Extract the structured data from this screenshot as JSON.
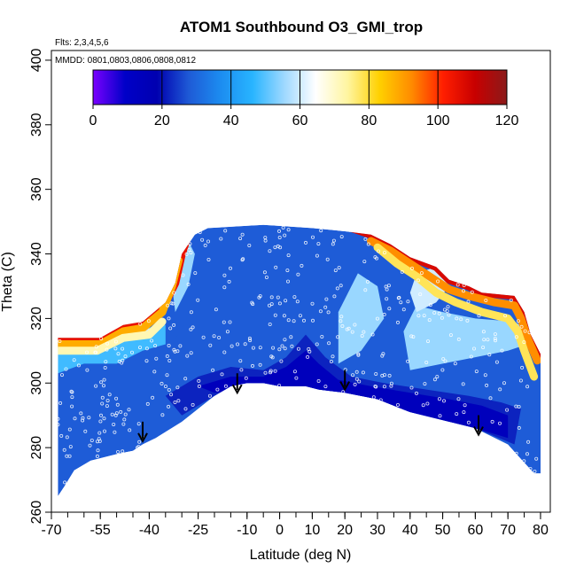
{
  "chart_data": {
    "type": "heatmap",
    "title": "ATOM1 Southbound O3_GMI_trop",
    "flights_note": "Flts: 2,3,4,5,6",
    "dates_note": "MMDD: 0801,0803,0806,0808,0812",
    "xlabel": "Latitude (deg N)",
    "ylabel": "Theta (C)",
    "xlim": [
      -70,
      83
    ],
    "ylim": [
      260,
      403
    ],
    "x_ticks": [
      -70,
      -55,
      -40,
      -25,
      -10,
      0,
      10,
      20,
      30,
      40,
      50,
      60,
      70,
      80
    ],
    "y_ticks": [
      260,
      280,
      300,
      320,
      340,
      360,
      380,
      400
    ],
    "colorbar": {
      "min": 0,
      "max": 120,
      "ticks": [
        0,
        20,
        40,
        60,
        80,
        100,
        120
      ],
      "colors": [
        "#7a00ff",
        "#0000c8",
        "#0000b0",
        "#1e5ad6",
        "#1c8cf0",
        "#28b4ff",
        "#9ed8ff",
        "#ffffff",
        "#fff5a0",
        "#ffd000",
        "#ff8c00",
        "#ff1e00",
        "#c80000",
        "#8b1a1a"
      ]
    },
    "curtain_boundary": {
      "top": [
        [
          -68,
          314
        ],
        [
          -55,
          314
        ],
        [
          -48,
          318
        ],
        [
          -42,
          319
        ],
        [
          -35,
          325
        ],
        [
          -32,
          331
        ],
        [
          -30,
          340
        ],
        [
          -26,
          346
        ],
        [
          -22,
          348
        ],
        [
          -5,
          349
        ],
        [
          10,
          348
        ],
        [
          20,
          347
        ],
        [
          28,
          346
        ],
        [
          34,
          343
        ],
        [
          40,
          339
        ],
        [
          48,
          336
        ],
        [
          52,
          332
        ],
        [
          58,
          330
        ],
        [
          62,
          328
        ],
        [
          72,
          327
        ],
        [
          75,
          322
        ],
        [
          77,
          315
        ],
        [
          80,
          309
        ],
        [
          80,
          294
        ]
      ],
      "bottom": [
        [
          80,
          272
        ],
        [
          78,
          272
        ],
        [
          70,
          281
        ],
        [
          60,
          286
        ],
        [
          52,
          288
        ],
        [
          40,
          291
        ],
        [
          30,
          295
        ],
        [
          20,
          297
        ],
        [
          12,
          298
        ],
        [
          8,
          299
        ],
        [
          0,
          299
        ],
        [
          -5,
          300
        ],
        [
          -10,
          300
        ],
        [
          -15,
          299
        ],
        [
          -20,
          296
        ],
        [
          -25,
          292
        ],
        [
          -30,
          288
        ],
        [
          -38,
          283
        ],
        [
          -42,
          281
        ],
        [
          -45,
          279
        ],
        [
          -50,
          278
        ],
        [
          -58,
          276
        ],
        [
          -63,
          273
        ],
        [
          -66,
          268
        ],
        [
          -68,
          265
        ]
      ]
    },
    "field_layers": [
      {
        "value": 28,
        "polygon": [
          [
            -68,
            265
          ],
          [
            -68,
            302
          ],
          [
            -55,
            304
          ],
          [
            -45,
            307
          ],
          [
            -35,
            309
          ],
          [
            -28,
            320
          ],
          [
            -24,
            330
          ],
          [
            -20,
            345
          ],
          [
            0,
            348
          ],
          [
            20,
            345
          ],
          [
            35,
            340
          ],
          [
            45,
            324
          ],
          [
            55,
            318
          ],
          [
            75,
            314
          ],
          [
            80,
            294
          ],
          [
            80,
            272
          ],
          [
            60,
            286
          ],
          [
            40,
            291
          ],
          [
            20,
            297
          ],
          [
            0,
            299
          ],
          [
            -20,
            296
          ],
          [
            -38,
            283
          ],
          [
            -50,
            278
          ],
          [
            -63,
            273
          ]
        ]
      },
      {
        "value": 22,
        "polygon": [
          [
            -35,
            296
          ],
          [
            -25,
            302
          ],
          [
            -15,
            305
          ],
          [
            -5,
            304
          ],
          [
            2,
            308
          ],
          [
            8,
            315
          ],
          [
            14,
            308
          ],
          [
            22,
            302
          ],
          [
            32,
            300
          ],
          [
            45,
            298
          ],
          [
            58,
            296
          ],
          [
            68,
            294
          ],
          [
            74,
            292
          ],
          [
            72,
            281
          ],
          [
            60,
            286
          ],
          [
            40,
            291
          ],
          [
            20,
            297
          ],
          [
            0,
            299
          ],
          [
            -20,
            296
          ],
          [
            -30,
            290
          ]
        ]
      },
      {
        "value": 14,
        "polygon": [
          [
            -25,
            299
          ],
          [
            -15,
            302
          ],
          [
            -5,
            302
          ],
          [
            2,
            305
          ],
          [
            8,
            310
          ],
          [
            12,
            306
          ],
          [
            18,
            301
          ],
          [
            28,
            299
          ],
          [
            40,
            297
          ],
          [
            52,
            295
          ],
          [
            62,
            293
          ],
          [
            70,
            290
          ],
          [
            70,
            283
          ],
          [
            60,
            286
          ],
          [
            40,
            291
          ],
          [
            20,
            297
          ],
          [
            0,
            299
          ],
          [
            -20,
            297
          ]
        ]
      },
      {
        "value": 48,
        "polygon": [
          [
            -68,
            303
          ],
          [
            -60,
            306
          ],
          [
            -50,
            306
          ],
          [
            -42,
            310
          ],
          [
            -35,
            312
          ],
          [
            -35,
            318
          ],
          [
            -48,
            316
          ],
          [
            -58,
            313
          ],
          [
            -68,
            312
          ]
        ]
      },
      {
        "value": 60,
        "polygon": [
          [
            -68,
            309
          ],
          [
            -58,
            311
          ],
          [
            -48,
            313
          ],
          [
            -40,
            316
          ],
          [
            -40,
            319
          ],
          [
            -50,
            318
          ],
          [
            -60,
            314
          ],
          [
            -68,
            313
          ]
        ]
      },
      {
        "value": 55,
        "polygon": [
          [
            40,
            304
          ],
          [
            50,
            306
          ],
          [
            60,
            308
          ],
          [
            70,
            310
          ],
          [
            76,
            312
          ],
          [
            77,
            316
          ],
          [
            72,
            319
          ],
          [
            60,
            320
          ],
          [
            50,
            322
          ],
          [
            42,
            324
          ],
          [
            38,
            316
          ]
        ]
      },
      {
        "value": 55,
        "polygon": [
          [
            18,
            306
          ],
          [
            25,
            310
          ],
          [
            32,
            320
          ],
          [
            30,
            330
          ],
          [
            24,
            334
          ],
          [
            18,
            322
          ]
        ]
      },
      {
        "value": 60,
        "polygon": [
          [
            42,
            322
          ],
          [
            48,
            325
          ],
          [
            52,
            330
          ],
          [
            48,
            336
          ],
          [
            42,
            334
          ],
          [
            40,
            328
          ]
        ]
      },
      {
        "value": 55,
        "polygon": [
          [
            -32,
            322
          ],
          [
            -28,
            330
          ],
          [
            -26,
            340
          ],
          [
            -28,
            344
          ],
          [
            -31,
            338
          ],
          [
            -33,
            330
          ]
        ]
      }
    ],
    "high_band_segments": [
      {
        "value": 105,
        "polyline": [
          [
            -68,
            314
          ],
          [
            -55,
            314
          ],
          [
            -48,
            318
          ],
          [
            -42,
            319
          ],
          [
            -35,
            325
          ],
          [
            -32,
            331
          ],
          [
            -30,
            340
          ],
          [
            -28,
            346
          ]
        ]
      },
      {
        "value": 88,
        "polyline": [
          [
            -68,
            312
          ],
          [
            -55,
            312
          ],
          [
            -48,
            316
          ],
          [
            -42,
            317
          ],
          [
            -36,
            322
          ],
          [
            -33,
            330
          ],
          [
            -31,
            338
          ]
        ]
      },
      {
        "value": 72,
        "polyline": [
          [
            -68,
            310
          ],
          [
            -56,
            310
          ],
          [
            -48,
            314
          ],
          [
            -40,
            315
          ],
          [
            -36,
            319
          ]
        ]
      },
      {
        "value": 108,
        "polyline": [
          [
            22,
            348
          ],
          [
            28,
            346
          ],
          [
            34,
            343
          ],
          [
            40,
            339
          ],
          [
            48,
            336
          ],
          [
            52,
            332
          ],
          [
            58,
            330
          ],
          [
            62,
            328
          ],
          [
            72,
            327
          ],
          [
            75,
            322
          ],
          [
            77,
            315
          ],
          [
            80,
            309
          ]
        ]
      },
      {
        "value": 92,
        "polyline": [
          [
            28,
            344
          ],
          [
            34,
            341
          ],
          [
            40,
            337
          ],
          [
            46,
            333
          ],
          [
            52,
            329
          ],
          [
            58,
            327
          ],
          [
            66,
            325
          ],
          [
            72,
            324
          ],
          [
            74,
            320
          ],
          [
            76,
            314
          ],
          [
            79,
            307
          ]
        ]
      },
      {
        "value": 78,
        "polyline": [
          [
            30,
            342
          ],
          [
            36,
            337
          ],
          [
            42,
            333
          ],
          [
            48,
            328
          ],
          [
            54,
            325
          ],
          [
            62,
            322
          ],
          [
            70,
            320
          ],
          [
            73,
            316
          ],
          [
            75,
            310
          ],
          [
            78,
            302
          ]
        ]
      }
    ],
    "flight_markers_lat": [
      -42,
      -13,
      20,
      61
    ],
    "flight_markers_theta": [
      282,
      297,
      298,
      284
    ]
  }
}
